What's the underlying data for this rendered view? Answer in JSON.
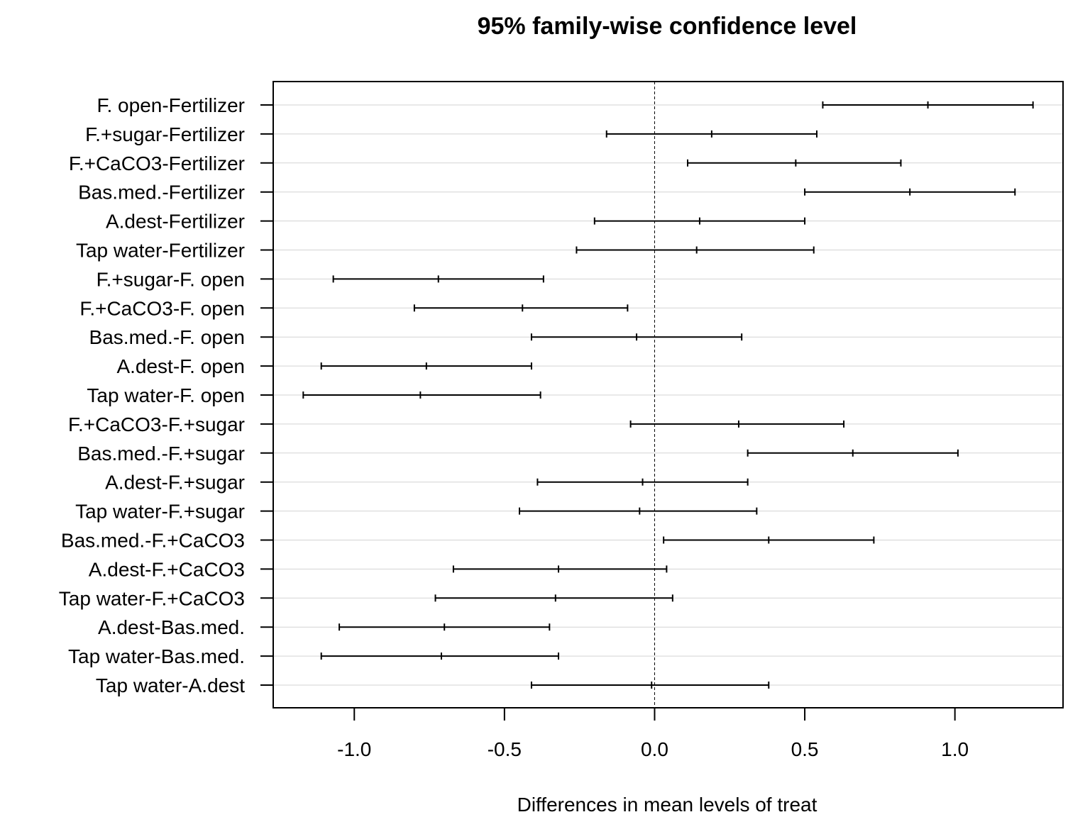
{
  "chart_data": {
    "type": "errorbar",
    "title": "95% family-wise confidence level",
    "xlabel": "Differences in mean levels of treat",
    "ylabel": "",
    "xlim": [
      -1.27,
      1.36
    ],
    "xticks": [
      -1.0,
      -0.5,
      0.0,
      0.5,
      1.0
    ],
    "xtick_labels": [
      "-1.0",
      "-0.5",
      "0.0",
      "0.5",
      "1.0"
    ],
    "reference_line": 0,
    "grid": "horizontal",
    "series": [
      {
        "category": "F. open-Fertilizer",
        "lwr": 0.56,
        "diff": 0.91,
        "upr": 1.26
      },
      {
        "category": "F.+sugar-Fertilizer",
        "lwr": -0.16,
        "diff": 0.19,
        "upr": 0.54
      },
      {
        "category": "F.+CaCO3-Fertilizer",
        "lwr": 0.11,
        "diff": 0.47,
        "upr": 0.82
      },
      {
        "category": "Bas.med.-Fertilizer",
        "lwr": 0.5,
        "diff": 0.85,
        "upr": 1.2
      },
      {
        "category": "A.dest-Fertilizer",
        "lwr": -0.2,
        "diff": 0.15,
        "upr": 0.5
      },
      {
        "category": "Tap water-Fertilizer",
        "lwr": -0.26,
        "diff": 0.14,
        "upr": 0.53
      },
      {
        "category": "F.+sugar-F. open",
        "lwr": -1.07,
        "diff": -0.72,
        "upr": -0.37
      },
      {
        "category": "F.+CaCO3-F. open",
        "lwr": -0.8,
        "diff": -0.44,
        "upr": -0.09
      },
      {
        "category": "Bas.med.-F. open",
        "lwr": -0.41,
        "diff": -0.06,
        "upr": 0.29
      },
      {
        "category": "A.dest-F. open",
        "lwr": -1.11,
        "diff": -0.76,
        "upr": -0.41
      },
      {
        "category": "Tap water-F. open",
        "lwr": -1.17,
        "diff": -0.78,
        "upr": -0.38
      },
      {
        "category": "F.+CaCO3-F.+sugar",
        "lwr": -0.08,
        "diff": 0.28,
        "upr": 0.63
      },
      {
        "category": "Bas.med.-F.+sugar",
        "lwr": 0.31,
        "diff": 0.66,
        "upr": 1.01
      },
      {
        "category": "A.dest-F.+sugar",
        "lwr": -0.39,
        "diff": -0.04,
        "upr": 0.31
      },
      {
        "category": "Tap water-F.+sugar",
        "lwr": -0.45,
        "diff": -0.05,
        "upr": 0.34
      },
      {
        "category": "Bas.med.-F.+CaCO3",
        "lwr": 0.03,
        "diff": 0.38,
        "upr": 0.73
      },
      {
        "category": "A.dest-F.+CaCO3",
        "lwr": -0.67,
        "diff": -0.32,
        "upr": 0.04
      },
      {
        "category": "Tap water-F.+CaCO3",
        "lwr": -0.73,
        "diff": -0.33,
        "upr": 0.06
      },
      {
        "category": "A.dest-Bas.med.",
        "lwr": -1.05,
        "diff": -0.7,
        "upr": -0.35
      },
      {
        "category": "Tap water-Bas.med.",
        "lwr": -1.11,
        "diff": -0.71,
        "upr": -0.32
      },
      {
        "category": "Tap water-A.dest",
        "lwr": -0.41,
        "diff": -0.01,
        "upr": 0.38
      }
    ]
  }
}
